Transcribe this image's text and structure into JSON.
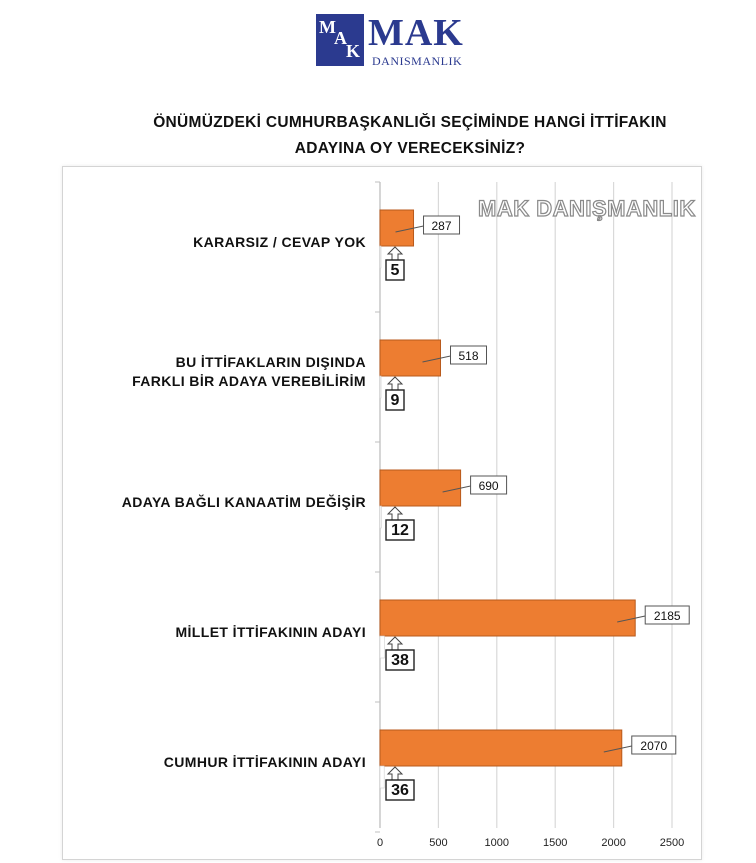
{
  "logo": {
    "mark_letters": "MAK",
    "name": "MAK",
    "subtitle": "DANISMANLIK"
  },
  "title_line1": "ÖNÜMÜZDEKİ CUMHURBAŞKANLIĞI SEÇİMİNDE HANGİ İTTİFAKIN",
  "title_line2": "ADAYINA OY VERECEKSİNİZ?",
  "watermark": "MAK DANIŞMANLIK",
  "colors": {
    "bar": "#ed7d31",
    "bar_stroke": "#b85a1c",
    "grid": "#d9d9d9",
    "brand": "#2b3a8f"
  },
  "chart_data": {
    "type": "bar",
    "orientation": "horizontal",
    "title": "ÖNÜMÜZDEKİ CUMHURBAŞKANLIĞI SEÇİMİNDE HANGİ İTTİFAKIN ADAYINA OY VERECEKSİNİZ?",
    "categories": [
      [
        "KARARSIZ / CEVAP YOK"
      ],
      [
        "BU İTTİFAKLARIN DIŞINDA",
        "FARKLI BİR ADAYA VEREBİLİRİM"
      ],
      [
        "ADAYA BAĞLI KANAATİM DEĞİŞİR"
      ],
      [
        "MİLLET İTTİFAKININ ADAYI"
      ],
      [
        "CUMHUR İTTİFAKININ ADAYI"
      ]
    ],
    "series": [
      {
        "values": [
          287,
          518,
          690,
          2185,
          2070
        ]
      },
      {
        "values": [
          5,
          9,
          12,
          38,
          36
        ]
      }
    ],
    "xlim": [
      0,
      2500
    ],
    "xticks": [
      0,
      500,
      1000,
      1500,
      2000,
      2500
    ],
    "grid": true,
    "legend": "none"
  }
}
